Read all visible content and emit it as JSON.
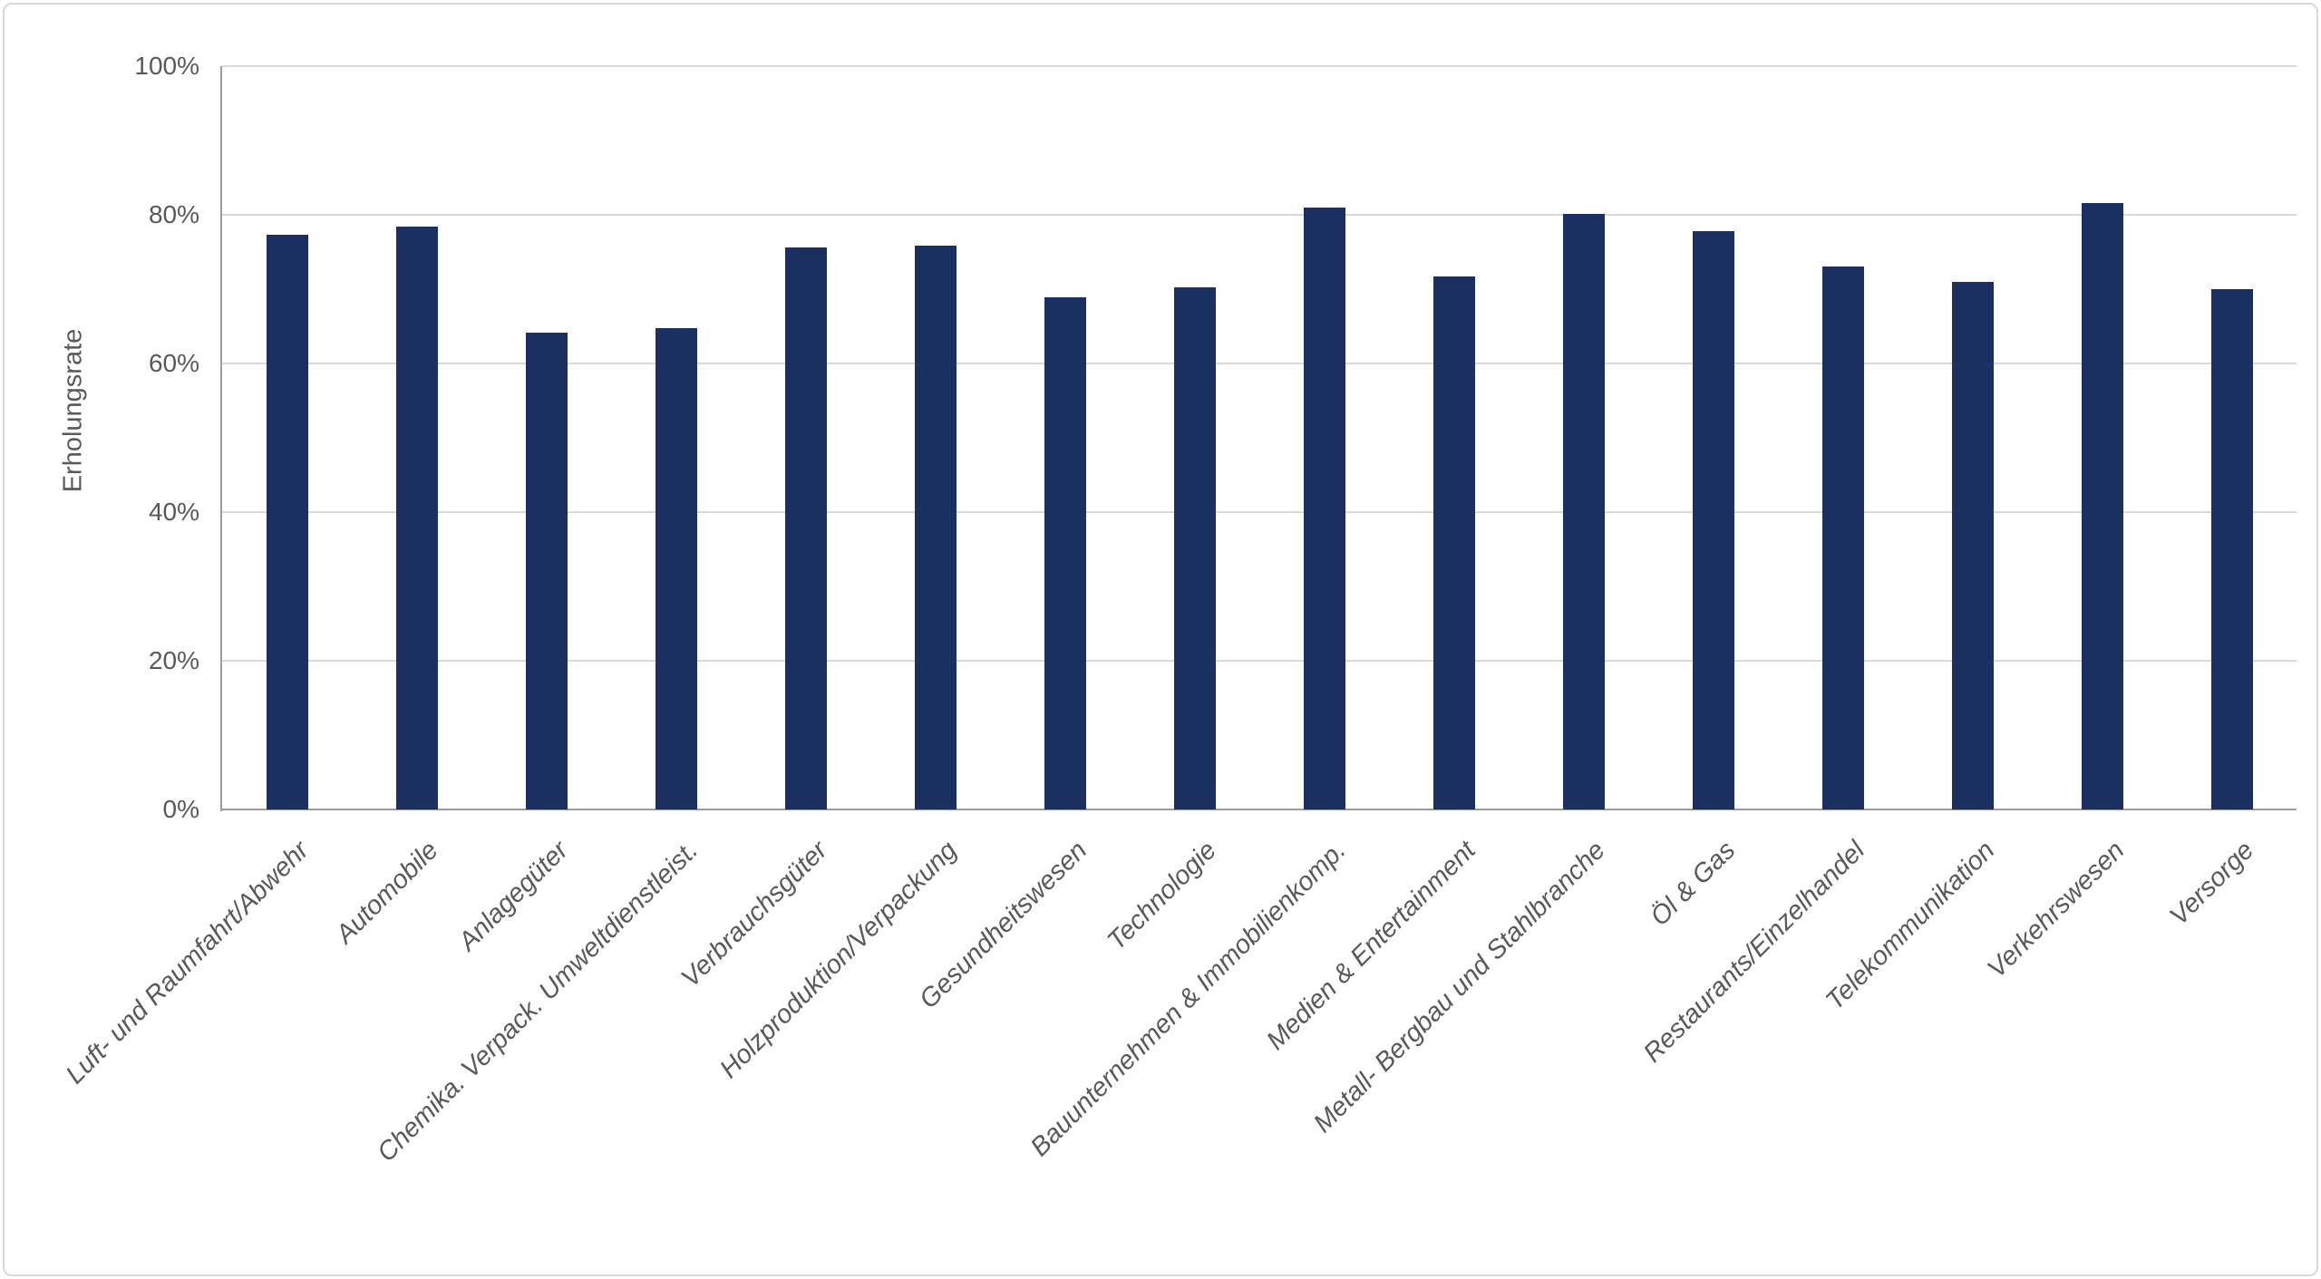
{
  "chart_data": {
    "type": "bar",
    "ylabel": "Erholungsrate",
    "xlabel": "",
    "categories": [
      "Luft- und Raumfahrt/Abwehr",
      "Automobile",
      "Anlagegüter",
      "Chemika. Verpack. Umweltdienstleist.",
      "Verbrauchsgüter",
      "Holzproduktion/Verpackung",
      "Gesundheitswesen",
      "Technologie",
      "Bauunternehmen & Immobilienkomp.",
      "Medien & Entertainment",
      "Metall- Bergbau und Stahlbranche",
      "Öl & Gas",
      "Restaurants/Einzelhandel",
      "Telekommunikation",
      "Verkehrswesen",
      "Versorge"
    ],
    "values": [
      77.3,
      78.4,
      64.1,
      64.7,
      75.6,
      75.9,
      68.9,
      70.3,
      81.0,
      71.7,
      80.1,
      77.8,
      73.0,
      71.0,
      81.6,
      70.0
    ],
    "value_format": "percent",
    "ylim": [
      0,
      100
    ],
    "yticks": [
      "0%",
      "20%",
      "40%",
      "60%",
      "80%",
      "100%"
    ],
    "grid": true,
    "legend": false,
    "colors": {
      "bar": "#1B2F61",
      "text": "#595959",
      "gridline": "#D9D9D9",
      "axis": "#9C9C9C",
      "background": "#FFFFFF",
      "frame_border": "#D9D9D9"
    }
  }
}
